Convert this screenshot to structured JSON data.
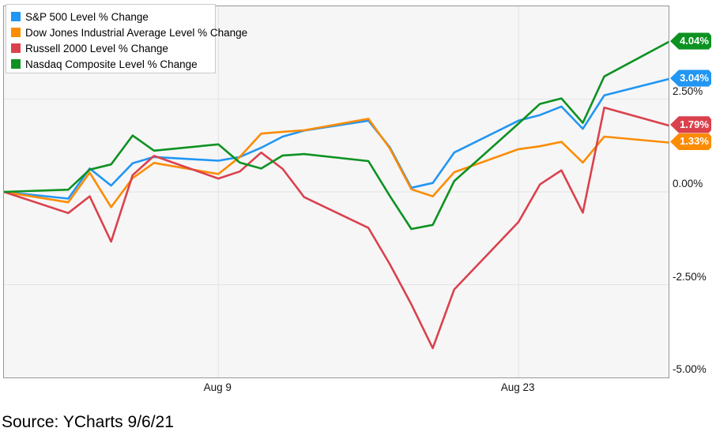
{
  "chart_data": {
    "type": "line",
    "title": "",
    "xlabel": "",
    "ylabel": "",
    "x": [
      "Jul 30",
      "Aug 2",
      "Aug 3",
      "Aug 4",
      "Aug 5",
      "Aug 6",
      "Aug 9",
      "Aug 10",
      "Aug 11",
      "Aug 12",
      "Aug 13",
      "Aug 16",
      "Aug 17",
      "Aug 18",
      "Aug 19",
      "Aug 20",
      "Aug 23",
      "Aug 24",
      "Aug 25",
      "Aug 26",
      "Aug 27",
      "Aug 30"
    ],
    "x_calendar_offsets": [
      0,
      3,
      4,
      5,
      6,
      7,
      10,
      11,
      12,
      13,
      14,
      17,
      18,
      19,
      20,
      21,
      24,
      25,
      26,
      27,
      28,
      31
    ],
    "ylim": [
      -5,
      5
    ],
    "grid": true,
    "legend_position": "top-left",
    "plot_bg": "#f6f6f6",
    "grid_color": "#e3e3e3",
    "border_color": "#979797",
    "yticks": [
      {
        "value": 2.5,
        "label": "2.50%"
      },
      {
        "value": 0,
        "label": "0.00%"
      },
      {
        "value": -2.5,
        "label": "-2.50%"
      },
      {
        "value": -5,
        "label": "-5.00%"
      }
    ],
    "xticks": [
      {
        "offset": 10,
        "label": "Aug 9"
      },
      {
        "offset": 24,
        "label": "Aug 23"
      }
    ],
    "series": [
      {
        "name": "S&P 500 Level % Change",
        "color": "#2196f3",
        "end_label": "3.04%",
        "values": [
          0,
          -0.18,
          0.63,
          0.17,
          0.77,
          0.94,
          0.84,
          0.94,
          1.19,
          1.49,
          1.65,
          1.92,
          1.2,
          0.11,
          0.24,
          1.06,
          1.92,
          2.07,
          2.3,
          1.7,
          2.6,
          3.04
        ]
      },
      {
        "name": "Dow Jones Industrial Average Level % Change",
        "color": "#fb8c04",
        "end_label": "1.33%",
        "values": [
          0,
          -0.28,
          0.52,
          -0.41,
          0.37,
          0.78,
          0.48,
          0.94,
          1.57,
          1.62,
          1.66,
          1.97,
          1.17,
          0.07,
          -0.12,
          0.53,
          1.15,
          1.23,
          1.35,
          0.79,
          1.49,
          1.33
        ]
      },
      {
        "name": "Russell 2000 Level % Change",
        "color": "#da414d",
        "end_label": "1.79%",
        "values": [
          0,
          -0.57,
          -0.12,
          -1.34,
          0.45,
          0.97,
          0.36,
          0.55,
          1.06,
          0.62,
          -0.14,
          -0.97,
          -1.95,
          -3.03,
          -4.21,
          -2.63,
          -0.81,
          0.2,
          0.58,
          -0.56,
          2.27,
          1.79
        ]
      },
      {
        "name": "Nasdaq Composite Level % Change",
        "color": "#0d9222",
        "end_label": "4.04%",
        "values": [
          0,
          0.06,
          0.6,
          0.74,
          1.52,
          1.11,
          1.28,
          0.79,
          0.63,
          0.98,
          1.02,
          0.83,
          -0.11,
          -1.0,
          -0.89,
          0.29,
          1.84,
          2.37,
          2.52,
          1.86,
          3.11,
          4.04
        ]
      }
    ]
  },
  "source": {
    "text": "Source: YCharts 9/6/21"
  }
}
